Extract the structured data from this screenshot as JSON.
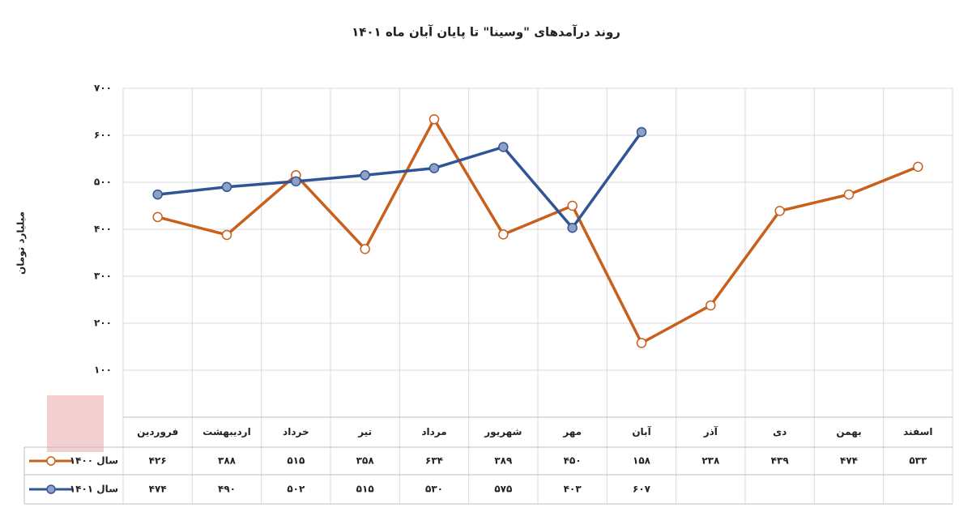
{
  "chart_data": {
    "type": "line",
    "title": "روند درآمدهای \"وسینا\" تا پایان آبان ماه ۱۴۰۱",
    "y_label": "میلیارد تومان",
    "categories": [
      "فروردین",
      "اردیبهشت",
      "خرداد",
      "تیر",
      "مرداد",
      "شهریور",
      "مهر",
      "آبان",
      "آذر",
      "دی",
      "بهمن",
      "اسفند"
    ],
    "series": [
      {
        "name": "سال ۱۴۰۰",
        "color": "#c8601c",
        "values": [
          426,
          388,
          515,
          358,
          634,
          389,
          450,
          158,
          238,
          439,
          474,
          533
        ],
        "value_labels": [
          "۴۲۶",
          "۳۸۸",
          "۵۱۵",
          "۳۵۸",
          "۶۳۴",
          "۳۸۹",
          "۴۵۰",
          "۱۵۸",
          "۲۳۸",
          "۴۳۹",
          "۴۷۴",
          "۵۳۳"
        ]
      },
      {
        "name": "سال ۱۴۰۱",
        "color": "#2f5597",
        "values": [
          474,
          490,
          502,
          515,
          530,
          575,
          403,
          607,
          null,
          null,
          null,
          null
        ],
        "value_labels": [
          "۴۷۴",
          "۴۹۰",
          "۵۰۲",
          "۵۱۵",
          "۵۳۰",
          "۵۷۵",
          "۴۰۳",
          "۶۰۷",
          null,
          null,
          null,
          null
        ]
      }
    ],
    "ylim": [
      0,
      700
    ],
    "yticks": [
      {
        "value": 100,
        "label": "۱۰۰"
      },
      {
        "value": 200,
        "label": "۲۰۰"
      },
      {
        "value": 300,
        "label": "۳۰۰"
      },
      {
        "value": 400,
        "label": "۴۰۰"
      },
      {
        "value": 500,
        "label": "۵۰۰"
      },
      {
        "value": 600,
        "label": "۶۰۰"
      },
      {
        "value": 700,
        "label": "۷۰۰"
      }
    ],
    "grid": true
  }
}
